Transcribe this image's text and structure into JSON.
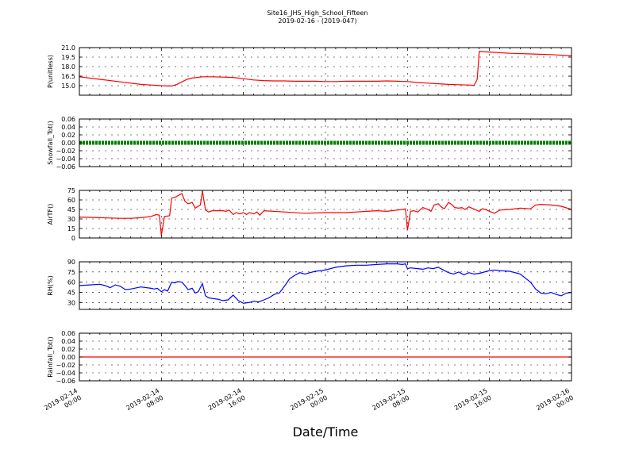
{
  "figure": {
    "title": "Site16_JHS_High_School_Fifteen",
    "subtitle": "2019-02-16 - (2019-047)",
    "xlabel": "Date/Time"
  },
  "chart_data": [
    {
      "type": "line",
      "ylabel": "P(unitless)",
      "ylim": [
        13.5,
        21.0
      ],
      "yticks": [
        15.0,
        16.5,
        18.0,
        19.5,
        21.0
      ],
      "ytick_labels": [
        "15.0",
        "16.5",
        "18.0",
        "19.5",
        "21.0"
      ],
      "xlim": [
        0,
        48
      ],
      "xticks": [
        0,
        8,
        16,
        24,
        32,
        40,
        48
      ],
      "xtick_labels": [
        [
          "2019-02-14",
          "00:00"
        ],
        [
          "2019-02-14",
          "08:00"
        ],
        [
          "2019-02-14",
          "16:00"
        ],
        [
          "2019-02-15",
          "00:00"
        ],
        [
          "2019-02-15",
          "08:00"
        ],
        [
          "2019-02-15",
          "16:00"
        ],
        [
          "2019-02-16",
          "00:00"
        ]
      ],
      "grid": true,
      "series": [
        {
          "color": "#ff0000",
          "x": [
            0,
            2,
            4,
            6,
            7,
            8,
            9,
            9.5,
            10,
            10.5,
            11,
            12,
            13,
            14,
            15,
            16,
            17,
            18,
            19,
            20,
            21,
            22,
            23,
            24,
            25,
            26,
            27,
            28,
            29,
            30,
            31,
            32,
            33,
            34,
            35,
            36,
            37,
            38,
            38.5,
            38.8,
            39,
            40,
            42,
            44,
            46,
            48
          ],
          "y": [
            16.4,
            16.0,
            15.6,
            15.2,
            15.1,
            15.0,
            14.95,
            15.2,
            15.6,
            16.0,
            16.2,
            16.4,
            16.4,
            16.35,
            16.3,
            16.1,
            15.9,
            15.8,
            15.75,
            15.75,
            15.7,
            15.7,
            15.7,
            15.65,
            15.65,
            15.7,
            15.7,
            15.7,
            15.7,
            15.75,
            15.7,
            15.65,
            15.5,
            15.4,
            15.3,
            15.2,
            15.15,
            15.1,
            15.05,
            16.0,
            20.4,
            20.3,
            20.1,
            20.0,
            19.9,
            19.7
          ]
        }
      ]
    },
    {
      "type": "line",
      "ylabel": "Snowfall_Tot()",
      "ylim": [
        -0.06,
        0.06
      ],
      "yticks": [
        -0.06,
        -0.04,
        -0.02,
        0.0,
        0.02,
        0.04,
        0.06
      ],
      "ytick_labels": [
        "−0.06",
        "−0.04",
        "−0.02",
        "0.00",
        "0.02",
        "0.04",
        "0.06"
      ],
      "xlim": [
        0,
        48
      ],
      "xticks": [
        0,
        8,
        16,
        24,
        32,
        40,
        48
      ],
      "grid": true,
      "series": [
        {
          "color": "#008000",
          "style": "markers",
          "x": [
            0,
            48
          ],
          "y": [
            0.0,
            0.0
          ]
        }
      ]
    },
    {
      "type": "line",
      "ylabel": "AirTF()",
      "ylim": [
        0,
        75
      ],
      "yticks": [
        0,
        15,
        30,
        45,
        60,
        75
      ],
      "ytick_labels": [
        "0",
        "15",
        "30",
        "45",
        "60",
        "75"
      ],
      "xlim": [
        0,
        48
      ],
      "xticks": [
        0,
        8,
        16,
        24,
        32,
        40,
        48
      ],
      "grid": true,
      "series": [
        {
          "color": "#ff0000",
          "x": [
            0,
            2,
            4,
            5,
            6,
            7,
            7.5,
            7.8,
            8.0,
            8.3,
            8.8,
            9.0,
            9.3,
            10,
            10.3,
            10.6,
            11,
            11.3,
            11.5,
            11.8,
            12.0,
            12.3,
            12.6,
            13,
            14,
            14.3,
            14.6,
            15,
            15.3,
            15.6,
            16,
            16.3,
            16.6,
            17,
            17.3,
            17.6,
            18,
            20,
            22,
            24,
            26,
            27,
            28,
            29,
            30,
            31,
            31.5,
            31.8,
            32.0,
            32.3,
            32.6,
            33,
            33.5,
            34,
            34.3,
            34.6,
            35,
            35.3,
            35.6,
            36,
            36.3,
            36.6,
            37,
            37.3,
            37.6,
            38,
            39,
            39.3,
            39.6,
            40,
            40.5,
            41,
            42,
            43,
            44,
            44.5,
            45,
            46,
            47,
            48
          ],
          "y": [
            33,
            32,
            31,
            31,
            32,
            34,
            37,
            36,
            4,
            34,
            35,
            63,
            64,
            70,
            58,
            54,
            56,
            47,
            49,
            52,
            74,
            44,
            41,
            43,
            43,
            42,
            44,
            37,
            40,
            38,
            40,
            37,
            40,
            38,
            41,
            36,
            43,
            41,
            39,
            40,
            40,
            41,
            42,
            43,
            42,
            44,
            45,
            46,
            12,
            42,
            43,
            41,
            48,
            45,
            42,
            52,
            54,
            49,
            46,
            56,
            53,
            48,
            47,
            48,
            45,
            49,
            42,
            46,
            45,
            42,
            39,
            44,
            45,
            47,
            46,
            52,
            53,
            52,
            50,
            45
          ]
        }
      ]
    },
    {
      "type": "line",
      "ylabel": "RH(%)",
      "ylim": [
        20,
        90
      ],
      "yticks": [
        30,
        45,
        60,
        75,
        90
      ],
      "ytick_labels": [
        "30",
        "45",
        "60",
        "75",
        "90"
      ],
      "xlim": [
        0,
        48
      ],
      "xticks": [
        0,
        8,
        16,
        24,
        32,
        40,
        48
      ],
      "grid": true,
      "series": [
        {
          "color": "#0000ff",
          "x": [
            0,
            1,
            2,
            2.5,
            3,
            3.5,
            4,
            4.5,
            5,
            6,
            7,
            7.3,
            7.6,
            8,
            8.3,
            8.6,
            9,
            9.3,
            9.6,
            10,
            10.3,
            10.6,
            11,
            11.3,
            11.6,
            12,
            12.3,
            12.6,
            13,
            13.5,
            14,
            14.5,
            15,
            15.5,
            16,
            16.5,
            17,
            17.5,
            18,
            18.5,
            19,
            19.5,
            20,
            20.5,
            21,
            21.5,
            22,
            22.5,
            23,
            24,
            25,
            26,
            27,
            28,
            29,
            30,
            31,
            31.5,
            31.8,
            32,
            32.3,
            33,
            33.5,
            34,
            34.5,
            35,
            35.5,
            36,
            36.5,
            37,
            37.5,
            38,
            38.5,
            39,
            40,
            40.5,
            41,
            42,
            43,
            44,
            44.5,
            45,
            45.5,
            46,
            46.5,
            47,
            47.5,
            48
          ],
          "y": [
            55,
            56,
            57,
            55,
            52,
            56,
            54,
            49,
            50,
            53,
            51,
            50,
            51,
            46,
            49,
            47,
            60,
            59,
            61,
            60,
            55,
            49,
            51,
            44,
            46,
            58,
            40,
            37,
            36,
            35,
            33,
            34,
            41,
            33,
            29,
            30,
            32,
            31,
            34,
            37,
            42,
            44,
            54,
            65,
            70,
            74,
            72,
            74,
            76,
            78,
            82,
            84,
            85,
            85,
            86,
            87,
            87,
            86,
            87,
            80,
            81,
            80,
            79,
            81,
            80,
            82,
            78,
            74,
            72,
            75,
            71,
            74,
            72,
            73,
            77,
            78,
            77,
            76,
            72,
            60,
            50,
            44,
            43,
            45,
            42,
            40,
            44,
            45
          ]
        }
      ]
    },
    {
      "type": "line",
      "ylabel": "Rainfall_Tot()",
      "ylim": [
        -0.06,
        0.06
      ],
      "yticks": [
        -0.06,
        -0.04,
        -0.02,
        0.0,
        0.02,
        0.04,
        0.06
      ],
      "ytick_labels": [
        "−0.06",
        "−0.04",
        "−0.02",
        "0.00",
        "0.02",
        "0.04",
        "0.06"
      ],
      "xlim": [
        0,
        48
      ],
      "xticks": [
        0,
        8,
        16,
        24,
        32,
        40,
        48
      ],
      "grid": true,
      "series": [
        {
          "color": "#ff0000",
          "x": [
            0,
            48
          ],
          "y": [
            0.0,
            0.0
          ]
        }
      ]
    }
  ]
}
